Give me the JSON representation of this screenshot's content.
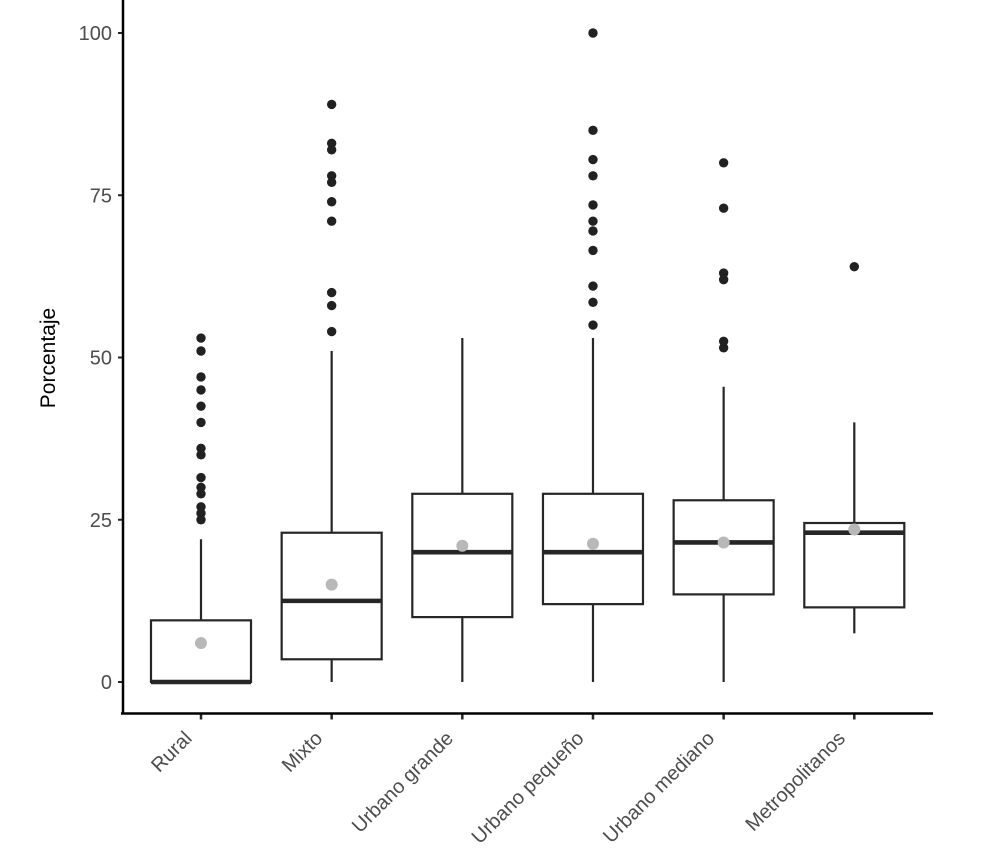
{
  "chart_data": {
    "type": "boxplot",
    "title": "",
    "xlabel": "",
    "ylabel": "Porcentaje",
    "ylim": [
      0,
      100
    ],
    "yticks": [
      0,
      25,
      50,
      75,
      100
    ],
    "grid": false,
    "legend": false,
    "x_label_rotation": -45,
    "categories": [
      "Rural",
      "Mixto",
      "Urbano grande",
      "Urbano pequeño",
      "Urbano mediano",
      "Metropolitanos"
    ],
    "series": [
      {
        "label": "Rural",
        "whisker_low": 0,
        "q1": 0,
        "median": 0,
        "q3": 9.5,
        "whisker_high": 22,
        "mean": 6,
        "outliers": [
          53,
          51,
          47,
          45,
          42.5,
          40,
          36,
          35,
          31.5,
          30,
          29,
          27,
          26,
          25
        ]
      },
      {
        "label": "Mixto",
        "whisker_low": 0,
        "q1": 3.5,
        "median": 12.5,
        "q3": 23,
        "whisker_high": 51,
        "mean": 15,
        "outliers": [
          89,
          83,
          82,
          78,
          77,
          74,
          71,
          60,
          58,
          54
        ]
      },
      {
        "label": "Urbano grande",
        "whisker_low": 0,
        "q1": 10,
        "median": 20,
        "q3": 29,
        "whisker_high": 53,
        "mean": 21,
        "outliers": []
      },
      {
        "label": "Urbano pequeño",
        "whisker_low": 0,
        "q1": 12,
        "median": 20,
        "q3": 29,
        "whisker_high": 53,
        "mean": 21.3,
        "outliers": [
          100,
          85,
          80.5,
          78,
          73.5,
          71,
          69.5,
          66.5,
          61,
          58.5,
          55
        ]
      },
      {
        "label": "Urbano mediano",
        "whisker_low": 0,
        "q1": 13.5,
        "median": 21.5,
        "q3": 28,
        "whisker_high": 45.5,
        "mean": 21.5,
        "outliers": [
          80,
          73,
          63,
          62,
          52.5,
          51.5
        ]
      },
      {
        "label": "Metropolitanos",
        "whisker_low": 7.5,
        "q1": 11.5,
        "median": 23,
        "q3": 24.5,
        "whisker_high": 40,
        "mean": 23.5,
        "outliers": [
          64
        ]
      }
    ],
    "colors": {
      "background": "#ffffff",
      "box_fill": "#ffffff",
      "box_border": "#262626",
      "median_line": "#262626",
      "whisker": "#262626",
      "outlier_dot": "#212121",
      "mean_dot": "#b8b8b8",
      "axis_line": "#000000",
      "tick_mark": "#262626",
      "tick_label": "#4d4d4d",
      "axis_title": "#000000"
    }
  }
}
